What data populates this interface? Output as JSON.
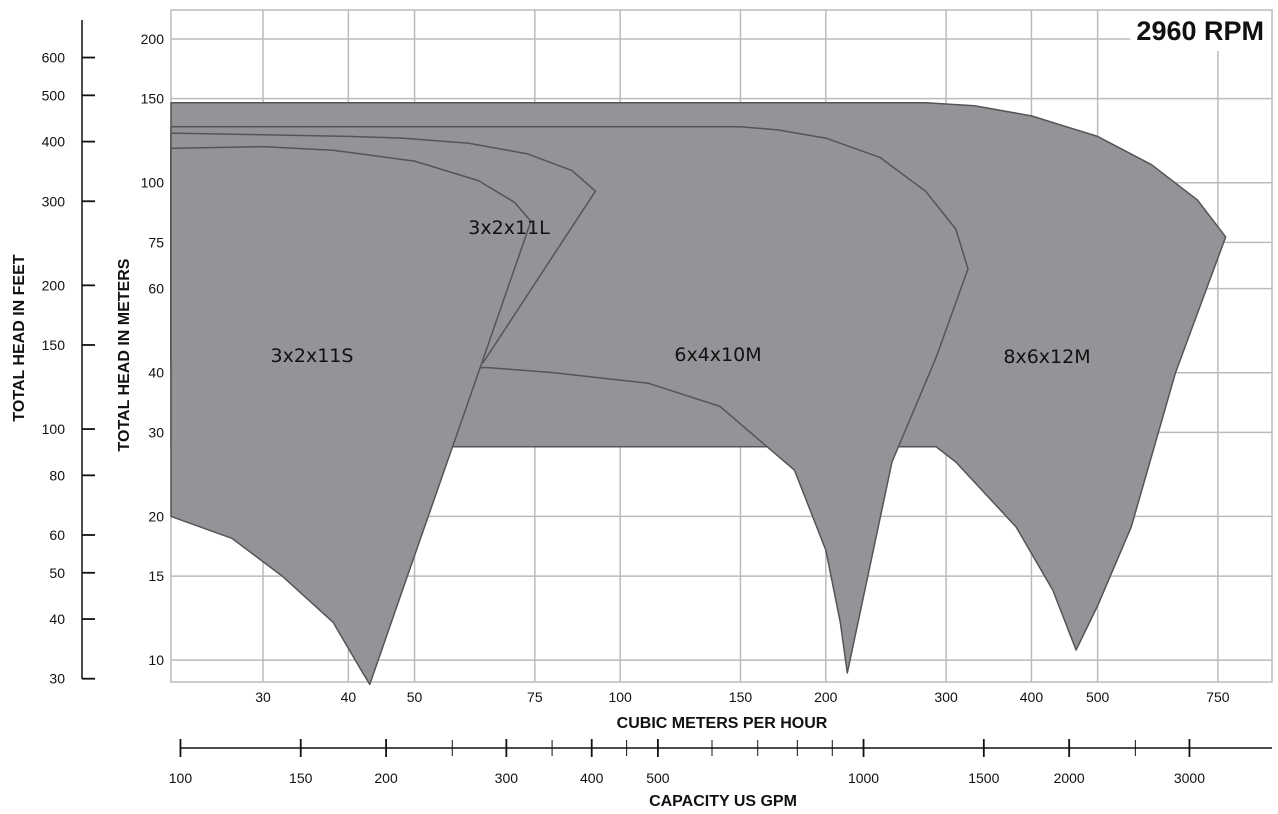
{
  "chart_data": {
    "type": "area",
    "title": "2960 RPM",
    "xlabel": "CUBIC METERS PER HOUR",
    "ylabel": "TOTAL HEAD IN METERS",
    "x2label": "CAPACITY US GPM",
    "y2label": "TOTAL HEAD IN FEET",
    "x_scale": "log",
    "y_scale": "log",
    "xlim": [
      22,
      900
    ],
    "ylim": [
      9,
      230
    ],
    "grid": true,
    "x_ticks": [
      "30",
      "40",
      "50",
      "75",
      "100",
      "150",
      "200",
      "300",
      "400",
      "500",
      "750"
    ],
    "y_ticks": [
      "10",
      "15",
      "20",
      "30",
      "40",
      "60",
      "75",
      "100",
      "150",
      "200"
    ],
    "gpm_ticks": [
      "100",
      "150",
      "200",
      "300",
      "400",
      "500",
      "1000",
      "1500",
      "2000",
      "3000"
    ],
    "feet_ticks": [
      "30",
      "40",
      "50",
      "60",
      "80",
      "100",
      "150",
      "200",
      "300",
      "400",
      "500",
      "600"
    ],
    "colors": {
      "region_fill": "#929497",
      "region_stroke": "#555555",
      "grid": "#bbbbbb"
    },
    "series": [
      {
        "name": "8x6x12M",
        "points": [
          [
            22,
            147
          ],
          [
            280,
            147
          ],
          [
            330,
            145
          ],
          [
            400,
            138
          ],
          [
            500,
            125
          ],
          [
            600,
            109
          ],
          [
            700,
            92
          ],
          [
            770,
            77
          ],
          [
            650,
            40
          ],
          [
            560,
            19
          ],
          [
            500,
            13
          ],
          [
            465,
            10.5
          ],
          [
            430,
            14
          ],
          [
            380,
            19
          ],
          [
            310,
            26
          ],
          [
            290,
            28
          ],
          [
            22,
            28
          ]
        ]
      },
      {
        "name": "6x4x10M",
        "points": [
          [
            22,
            131
          ],
          [
            150,
            131
          ],
          [
            170,
            129
          ],
          [
            200,
            124
          ],
          [
            240,
            113
          ],
          [
            280,
            96
          ],
          [
            310,
            80
          ],
          [
            323,
            66
          ],
          [
            290,
            43
          ],
          [
            250,
            26
          ],
          [
            215,
            9.4
          ],
          [
            210,
            12
          ],
          [
            200,
            17
          ],
          [
            180,
            25
          ],
          [
            140,
            34
          ],
          [
            110,
            38
          ],
          [
            80,
            40
          ],
          [
            64,
            41
          ],
          [
            22,
            41
          ]
        ]
      },
      {
        "name": "3x2x11L",
        "points": [
          [
            22,
            127
          ],
          [
            40,
            125
          ],
          [
            48,
            124
          ],
          [
            60,
            121
          ],
          [
            73,
            115
          ],
          [
            85,
            106
          ],
          [
            92,
            96
          ],
          [
            63,
            42
          ],
          [
            22,
            42
          ]
        ]
      },
      {
        "name": "3x2x11S",
        "points": [
          [
            22,
            118
          ],
          [
            30,
            119
          ],
          [
            38,
            117
          ],
          [
            50,
            111
          ],
          [
            62,
            101
          ],
          [
            70,
            91
          ],
          [
            74,
            83
          ],
          [
            62,
            40
          ],
          [
            48,
            14
          ],
          [
            43,
            8.9
          ],
          [
            42,
            9.4
          ],
          [
            38,
            12
          ],
          [
            32,
            15
          ],
          [
            27,
            18
          ],
          [
            22,
            20
          ]
        ]
      }
    ]
  }
}
